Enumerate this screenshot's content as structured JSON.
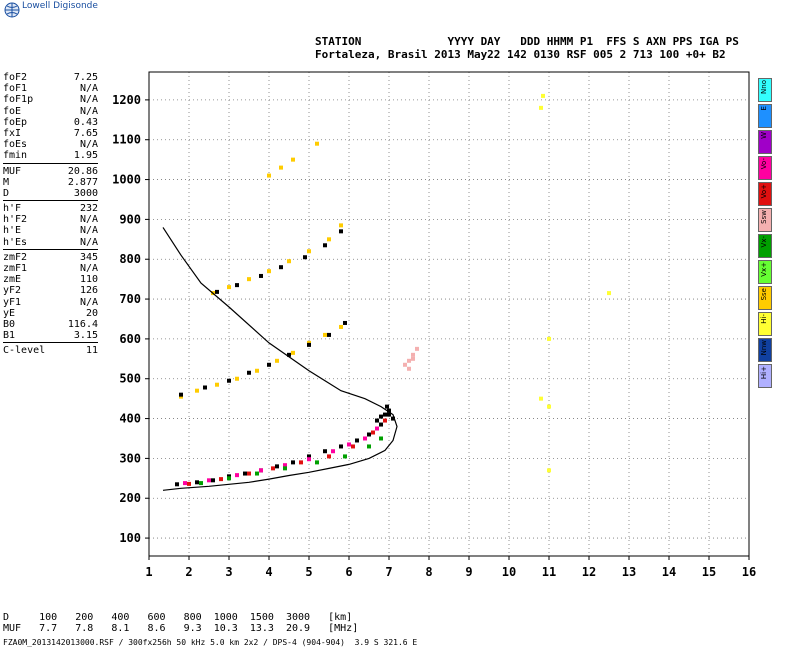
{
  "app": {
    "brand": "Lowell Digisonde"
  },
  "header": {
    "line1": "STATION             YYYY DAY   DDD HHMM P1  FFS S AXN PPS IGA PS",
    "line2": "Fortaleza, Brasil 2013 May22 142 0130 RSF 005 2 713 100 +0+ B2"
  },
  "params": {
    "group1": [
      {
        "name": "foF2",
        "value": "7.25"
      },
      {
        "name": "foF1",
        "value": "N/A"
      },
      {
        "name": "foF1p",
        "value": "N/A"
      },
      {
        "name": "foE",
        "value": "N/A"
      },
      {
        "name": "foEp",
        "value": "0.43"
      },
      {
        "name": "fxI",
        "value": "7.65"
      },
      {
        "name": "foEs",
        "value": "N/A"
      },
      {
        "name": "fmin",
        "value": "1.95"
      }
    ],
    "group2": [
      {
        "name": "MUF",
        "value": "20.86"
      },
      {
        "name": "M",
        "value": "2.877"
      },
      {
        "name": "D",
        "value": "3000"
      }
    ],
    "group3": [
      {
        "name": "h'F",
        "value": "232"
      },
      {
        "name": "h'F2",
        "value": "N/A"
      },
      {
        "name": "h'E",
        "value": "N/A"
      },
      {
        "name": "h'Es",
        "value": "N/A"
      }
    ],
    "group4": [
      {
        "name": "zmF2",
        "value": "345"
      },
      {
        "name": "zmF1",
        "value": "N/A"
      },
      {
        "name": "zmE",
        "value": "110"
      },
      {
        "name": "yF2",
        "value": "126"
      },
      {
        "name": "yF1",
        "value": "N/A"
      },
      {
        "name": "yE",
        "value": "20"
      },
      {
        "name": "B0",
        "value": "116.4"
      },
      {
        "name": "B1",
        "value": "3.15"
      }
    ],
    "group5": [
      {
        "name": "C-level",
        "value": "11"
      }
    ]
  },
  "footer": {
    "d_row": "D     100   200   400   600   800  1000  1500  3000   [km]",
    "muf_row": "MUF   7.7   7.8   8.1   8.6   9.3  10.3  13.3  20.9   [MHz]",
    "filename": "FZA0M_2013142013000.RSF / 300fx256h 50 kHz 5.0 km 2x2 / DPS-4 (904-904)  3.9 S 321.6 E"
  },
  "legend": [
    {
      "label": "Nno",
      "color": "#33ffff"
    },
    {
      "label": "E",
      "color": "#1e90ff"
    },
    {
      "label": "W",
      "color": "#a000c8"
    },
    {
      "label": "Vo-",
      "color": "#ff00a0"
    },
    {
      "label": "Vo+",
      "color": "#e01010"
    },
    {
      "label": "Ssw",
      "color": "#f4b0b0"
    },
    {
      "label": "Vx-",
      "color": "#00a000"
    },
    {
      "label": "Vx+",
      "color": "#66ff33"
    },
    {
      "label": "Sse",
      "color": "#ffcc00"
    },
    {
      "label": "Hi-",
      "color": "#ffff33"
    },
    {
      "label": "Nnw",
      "color": "#1040a0"
    },
    {
      "label": "Hi+",
      "color": "#b0b0ff"
    }
  ],
  "chart_data": {
    "type": "scatter",
    "title": "",
    "xlabel": "",
    "ylabel": "",
    "x_ticks": [
      "1",
      "2",
      "3",
      "4",
      "5",
      "6",
      "7",
      "8",
      "9",
      "10",
      "11",
      "12",
      "13",
      "14",
      "15",
      "16"
    ],
    "y_ticks": [
      "100",
      "200",
      "300",
      "400",
      "500",
      "600",
      "700",
      "800",
      "900",
      "1000",
      "1100",
      "1200"
    ],
    "xlim": [
      1,
      16
    ],
    "ylim": [
      55,
      1270
    ],
    "grid": true,
    "series": [
      {
        "color": "#000000",
        "x": [
          1.7,
          2.2,
          2.6,
          3.0,
          3.4,
          3.8,
          4.2,
          4.6,
          5.0,
          5.4,
          5.8,
          6.2,
          6.5,
          6.8,
          7.0
        ],
        "y": [
          235,
          240,
          245,
          255,
          262,
          270,
          280,
          290,
          305,
          318,
          330,
          345,
          360,
          385,
          410
        ]
      },
      {
        "color": "#ff00a0",
        "x": [
          1.9,
          2.5,
          3.2,
          3.8,
          4.4,
          5.0,
          5.6,
          6.0,
          6.4,
          6.7
        ],
        "y": [
          238,
          245,
          258,
          270,
          283,
          298,
          318,
          335,
          350,
          375
        ]
      },
      {
        "color": "#00a000",
        "x": [
          2.3,
          3.0,
          3.7,
          4.4,
          5.2,
          5.9,
          6.5,
          6.8
        ],
        "y": [
          238,
          250,
          262,
          275,
          290,
          305,
          330,
          350
        ]
      },
      {
        "color": "#e01010",
        "x": [
          2.0,
          2.8,
          3.5,
          4.1,
          4.8,
          5.5,
          6.1,
          6.6,
          6.9
        ],
        "y": [
          236,
          248,
          262,
          275,
          290,
          305,
          330,
          365,
          395
        ]
      },
      {
        "color": "#ffcc00",
        "x": [
          1.8,
          2.2,
          2.7,
          3.2,
          3.7,
          4.2,
          4.6,
          5.0,
          5.4,
          5.8
        ],
        "y": [
          455,
          470,
          485,
          500,
          520,
          545,
          565,
          590,
          610,
          630
        ]
      },
      {
        "color": "#000000",
        "x": [
          1.8,
          2.4,
          3.0,
          3.5,
          4.0,
          4.5,
          5.0,
          5.5,
          5.9
        ],
        "y": [
          460,
          478,
          495,
          515,
          535,
          560,
          585,
          610,
          640
        ]
      },
      {
        "color": "#ffcc00",
        "x": [
          2.6,
          3.0,
          3.5,
          4.0,
          4.5,
          5.0,
          5.5,
          5.8
        ],
        "y": [
          715,
          730,
          750,
          770,
          795,
          820,
          850,
          885
        ]
      },
      {
        "color": "#000000",
        "x": [
          2.7,
          3.2,
          3.8,
          4.3,
          4.9,
          5.4,
          5.8
        ],
        "y": [
          718,
          735,
          758,
          780,
          805,
          835,
          870
        ]
      },
      {
        "color": "#ffcc00",
        "x": [
          4.0,
          4.3,
          4.6,
          5.2
        ],
        "y": [
          1010,
          1030,
          1050,
          1090
        ]
      },
      {
        "color": "#f4b0b0",
        "x": [
          7.4,
          7.5,
          7.6,
          7.7,
          7.5,
          7.6
        ],
        "y": [
          535,
          545,
          560,
          575,
          525,
          550
        ]
      },
      {
        "color": "#ffff33",
        "x": [
          10.8,
          10.85,
          11.0,
          11.0,
          11.0,
          12.5,
          10.8
        ],
        "y": [
          1180,
          1210,
          600,
          430,
          270,
          715,
          450
        ]
      },
      {
        "color": "#000000",
        "x": [
          6.7,
          6.8,
          6.9,
          7.0,
          7.1,
          6.95
        ],
        "y": [
          395,
          405,
          410,
          420,
          400,
          430
        ]
      }
    ],
    "profile_curve": {
      "color": "#000000",
      "x": [
        1.35,
        1.8,
        2.5,
        3.0,
        3.5,
        4.0,
        4.5,
        5.0,
        5.5,
        6.0,
        6.5,
        6.9,
        7.1,
        7.2,
        7.1,
        6.8,
        6.4,
        5.8,
        5.0,
        4.0,
        3.0,
        2.3,
        1.8,
        1.35
      ],
      "y": [
        220,
        225,
        230,
        235,
        240,
        248,
        257,
        265,
        275,
        285,
        300,
        320,
        345,
        380,
        410,
        430,
        450,
        470,
        520,
        590,
        680,
        740,
        810,
        880
      ]
    }
  }
}
